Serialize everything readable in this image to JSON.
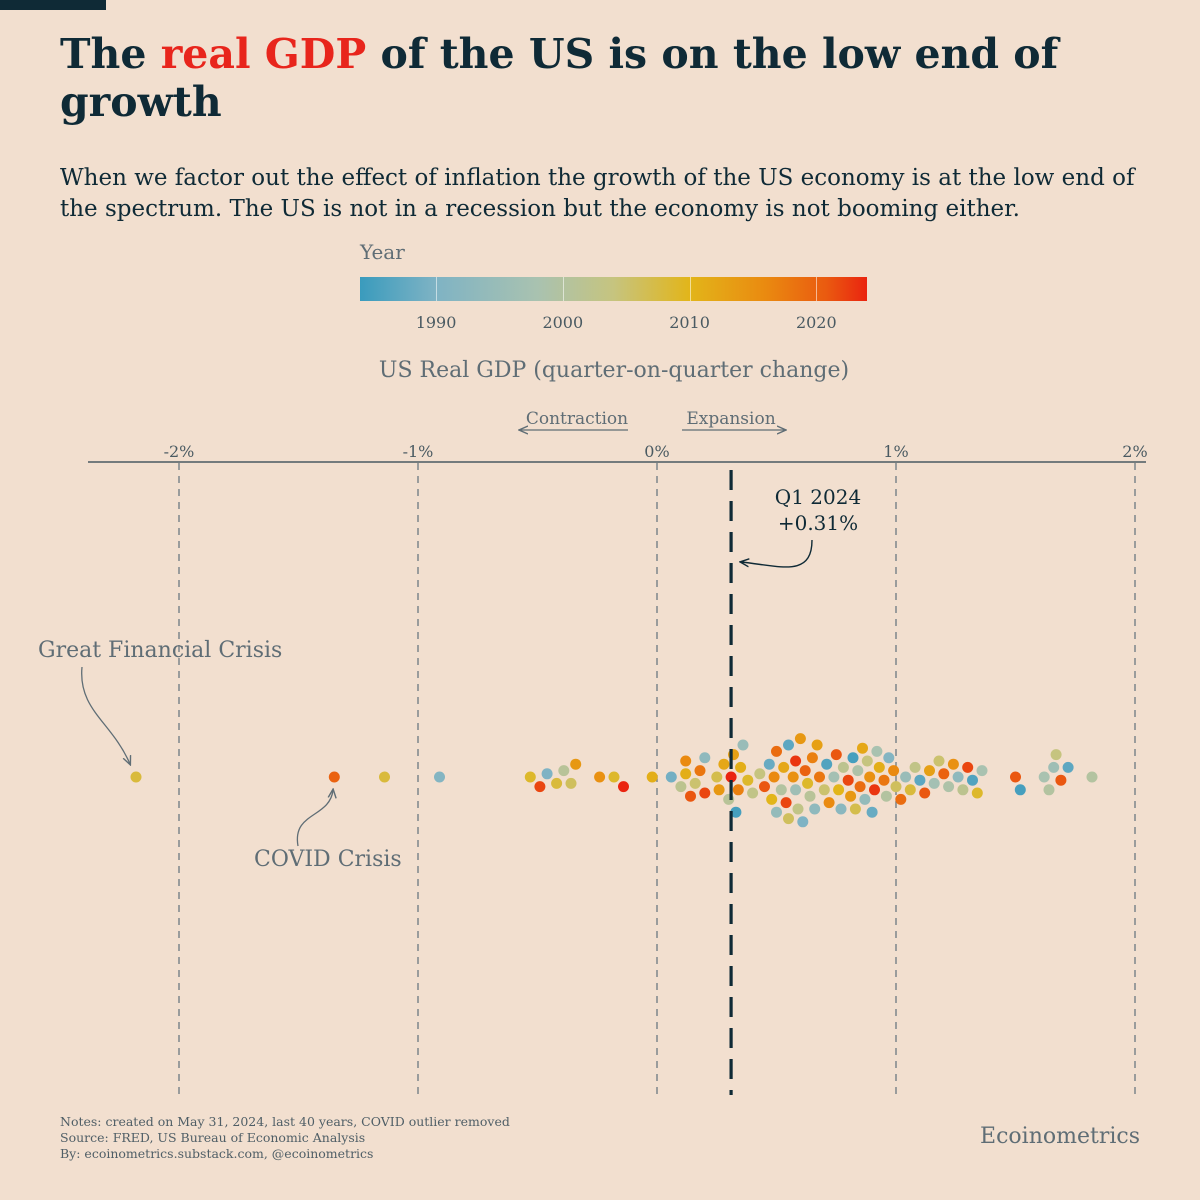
{
  "header": {
    "title_pre": "The ",
    "title_highlight": "real GDP",
    "title_post": " of the US is on the low end of growth",
    "subtitle": "When we factor out the effect of inflation the growth of the US economy is at the low end of the spectrum. The US is not in a recession but the economy is not booming either."
  },
  "colors": {
    "background": "#f2dfcf",
    "title": "#0f2a36",
    "highlight": "#e8251c",
    "muted": "#5f6d75"
  },
  "legend": {
    "title": "Year",
    "ticks": [
      "1990",
      "2000",
      "2010",
      "2020"
    ],
    "tick_years": [
      1990,
      2000,
      2010,
      2020
    ],
    "year_min": 1984,
    "year_max": 2024
  },
  "chart_data": {
    "type": "scatter",
    "variant": "beeswarm",
    "title": "US Real GDP (quarter-on-quarter change)",
    "xlabel": "US Real GDP (quarter-on-quarter change)",
    "xlim": [
      -2.4,
      2.06
    ],
    "x_ticks": [
      -2,
      -1,
      0,
      1,
      2
    ],
    "x_tick_labels": [
      "-2%",
      "-1%",
      "0%",
      "1%",
      "2%"
    ],
    "direction_labels": {
      "contraction": "Contraction",
      "expansion": "Expansion"
    },
    "highlight": {
      "label": "Q1 2024",
      "value_label": "+0.31%",
      "value": 0.31
    },
    "annotations": {
      "gfc": "Great Financial Crisis",
      "covid": "COVID Crisis"
    },
    "points": [
      {
        "x": -2.18,
        "year": 2008
      },
      {
        "x": -1.35,
        "year": 2020
      },
      {
        "x": -1.14,
        "year": 2008
      },
      {
        "x": -0.91,
        "year": 1991
      },
      {
        "x": -0.53,
        "year": 2009
      },
      {
        "x": -0.49,
        "year": 2022
      },
      {
        "x": -0.46,
        "year": 1990
      },
      {
        "x": -0.42,
        "year": 2008
      },
      {
        "x": -0.39,
        "year": 2001
      },
      {
        "x": -0.36,
        "year": 2006
      },
      {
        "x": -0.34,
        "year": 2014
      },
      {
        "x": -0.24,
        "year": 2015
      },
      {
        "x": -0.18,
        "year": 2009
      },
      {
        "x": -0.14,
        "year": 2024
      },
      {
        "x": -0.02,
        "year": 2011
      },
      {
        "x": 0.06,
        "year": 1989
      },
      {
        "x": 0.1,
        "year": 2002
      },
      {
        "x": 0.12,
        "year": 2011
      },
      {
        "x": 0.12,
        "year": 2016
      },
      {
        "x": 0.14,
        "year": 2021
      },
      {
        "x": 0.16,
        "year": 2005
      },
      {
        "x": 0.18,
        "year": 2018
      },
      {
        "x": 0.2,
        "year": 2022
      },
      {
        "x": 0.2,
        "year": 1993
      },
      {
        "x": 0.26,
        "year": 2014
      },
      {
        "x": 0.25,
        "year": 2007
      },
      {
        "x": 0.28,
        "year": 2012
      },
      {
        "x": 0.3,
        "year": 2001
      },
      {
        "x": 0.31,
        "year": 2024
      },
      {
        "x": 0.32,
        "year": 2013
      },
      {
        "x": 0.33,
        "year": 1985
      },
      {
        "x": 0.34,
        "year": 2017
      },
      {
        "x": 0.35,
        "year": 2011
      },
      {
        "x": 0.36,
        "year": 1995
      },
      {
        "x": 0.38,
        "year": 2009
      },
      {
        "x": 0.4,
        "year": 2003
      },
      {
        "x": 0.43,
        "year": 2004
      },
      {
        "x": 0.45,
        "year": 2021
      },
      {
        "x": 0.47,
        "year": 1988
      },
      {
        "x": 0.48,
        "year": 2010
      },
      {
        "x": 0.49,
        "year": 2016
      },
      {
        "x": 0.5,
        "year": 2019
      },
      {
        "x": 0.5,
        "year": 1994
      },
      {
        "x": 0.52,
        "year": 2000
      },
      {
        "x": 0.53,
        "year": 2012
      },
      {
        "x": 0.54,
        "year": 2022
      },
      {
        "x": 0.55,
        "year": 1987
      },
      {
        "x": 0.55,
        "year": 2006
      },
      {
        "x": 0.57,
        "year": 2015
      },
      {
        "x": 0.58,
        "year": 1996
      },
      {
        "x": 0.58,
        "year": 2023
      },
      {
        "x": 0.59,
        "year": 2003
      },
      {
        "x": 0.6,
        "year": 2014
      },
      {
        "x": 0.61,
        "year": 1990
      },
      {
        "x": 0.62,
        "year": 2020
      },
      {
        "x": 0.63,
        "year": 2009
      },
      {
        "x": 0.64,
        "year": 2001
      },
      {
        "x": 0.65,
        "year": 2017
      },
      {
        "x": 0.66,
        "year": 1993
      },
      {
        "x": 0.67,
        "year": 2013
      },
      {
        "x": 0.68,
        "year": 2018
      },
      {
        "x": 0.7,
        "year": 2005
      },
      {
        "x": 0.71,
        "year": 1986
      },
      {
        "x": 0.72,
        "year": 2016
      },
      {
        "x": 0.74,
        "year": 1997
      },
      {
        "x": 0.75,
        "year": 2021
      },
      {
        "x": 0.76,
        "year": 2010
      },
      {
        "x": 0.77,
        "year": 1992
      },
      {
        "x": 0.78,
        "year": 2002
      },
      {
        "x": 0.8,
        "year": 2022
      },
      {
        "x": 0.81,
        "year": 2014
      },
      {
        "x": 0.82,
        "year": 1985
      },
      {
        "x": 0.83,
        "year": 2007
      },
      {
        "x": 0.84,
        "year": 1999
      },
      {
        "x": 0.85,
        "year": 2019
      },
      {
        "x": 0.86,
        "year": 2012
      },
      {
        "x": 0.87,
        "year": 1994
      },
      {
        "x": 0.88,
        "year": 2004
      },
      {
        "x": 0.89,
        "year": 2015
      },
      {
        "x": 0.9,
        "year": 1988
      },
      {
        "x": 0.91,
        "year": 2023
      },
      {
        "x": 0.92,
        "year": 1998
      },
      {
        "x": 0.93,
        "year": 2011
      },
      {
        "x": 0.95,
        "year": 2018
      },
      {
        "x": 0.96,
        "year": 2000
      },
      {
        "x": 0.97,
        "year": 1991
      },
      {
        "x": 0.99,
        "year": 2016
      },
      {
        "x": 1.0,
        "year": 2006
      },
      {
        "x": 1.02,
        "year": 2019
      },
      {
        "x": 1.04,
        "year": 1995
      },
      {
        "x": 1.06,
        "year": 2008
      },
      {
        "x": 1.08,
        "year": 2003
      },
      {
        "x": 1.1,
        "year": 1987
      },
      {
        "x": 1.12,
        "year": 2021
      },
      {
        "x": 1.14,
        "year": 2013
      },
      {
        "x": 1.16,
        "year": 1997
      },
      {
        "x": 1.18,
        "year": 2005
      },
      {
        "x": 1.2,
        "year": 2020
      },
      {
        "x": 1.22,
        "year": 1999
      },
      {
        "x": 1.24,
        "year": 2015
      },
      {
        "x": 1.26,
        "year": 1993
      },
      {
        "x": 1.28,
        "year": 2002
      },
      {
        "x": 1.3,
        "year": 2022
      },
      {
        "x": 1.32,
        "year": 1986
      },
      {
        "x": 1.34,
        "year": 2009
      },
      {
        "x": 1.36,
        "year": 1998
      },
      {
        "x": 1.5,
        "year": 2021
      },
      {
        "x": 1.52,
        "year": 1985
      },
      {
        "x": 1.62,
        "year": 1998
      },
      {
        "x": 1.64,
        "year": 2000
      },
      {
        "x": 1.66,
        "year": 1996
      },
      {
        "x": 1.67,
        "year": 2004
      },
      {
        "x": 1.69,
        "year": 2021
      },
      {
        "x": 1.72,
        "year": 1987
      },
      {
        "x": 1.82,
        "year": 2000
      }
    ]
  },
  "footer": {
    "notes": "Notes: created on May 31, 2024, last 40 years, COVID outlier removed",
    "source": "Source: FRED, US Bureau of Economic Analysis",
    "by": "By: ecoinometrics.substack.com, @ecoinometrics",
    "brand": "Ecoinometrics"
  }
}
